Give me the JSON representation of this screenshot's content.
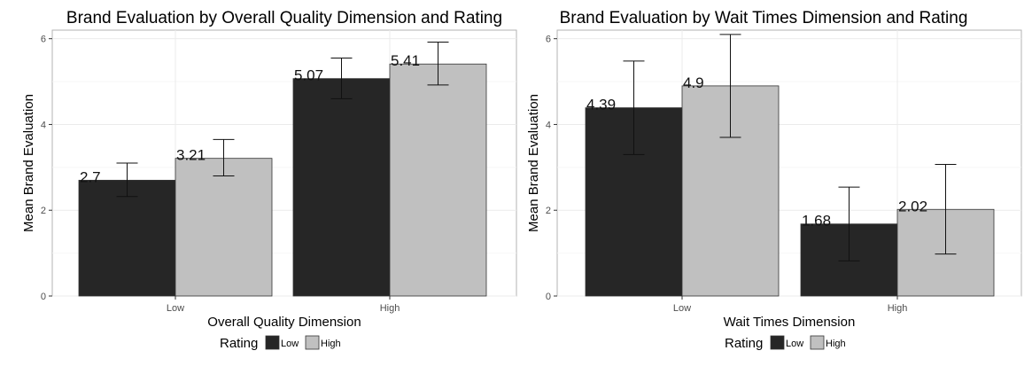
{
  "chart_data": [
    {
      "type": "bar",
      "title": "Brand Evaluation by Overall Quality Dimension and Rating",
      "xlabel": "Overall Quality Dimension",
      "ylabel": "Mean Brand Evaluation",
      "categories": [
        "Low",
        "High"
      ],
      "ylim": [
        0,
        6.2
      ],
      "yticks": [
        0,
        2,
        4,
        6
      ],
      "grid": true,
      "legend": {
        "title": "Rating",
        "position": "bottom"
      },
      "series": [
        {
          "name": "Low",
          "color": "#262626",
          "values": [
            2.7,
            5.07
          ],
          "error_low": [
            2.32,
            4.6
          ],
          "error_high": [
            3.1,
            5.55
          ],
          "labels": [
            "2.7",
            "5.07"
          ]
        },
        {
          "name": "High",
          "color": "#c0c0c0",
          "values": [
            3.21,
            5.41
          ],
          "error_low": [
            2.8,
            4.92
          ],
          "error_high": [
            3.65,
            5.92
          ],
          "labels": [
            "3.21",
            "5.41"
          ]
        }
      ]
    },
    {
      "type": "bar",
      "title": "Brand Evaluation by Wait Times Dimension and Rating",
      "xlabel": "Wait Times Dimension",
      "ylabel": "Mean Brand Evaluation",
      "categories": [
        "Low",
        "High"
      ],
      "ylim": [
        0,
        6.2
      ],
      "yticks": [
        0,
        2,
        4,
        6
      ],
      "grid": true,
      "legend": {
        "title": "Rating",
        "position": "bottom"
      },
      "series": [
        {
          "name": "Low",
          "color": "#262626",
          "values": [
            4.39,
            1.68
          ],
          "error_low": [
            3.3,
            0.82
          ],
          "error_high": [
            5.48,
            2.54
          ],
          "labels": [
            "4.39",
            "1.68"
          ]
        },
        {
          "name": "High",
          "color": "#c0c0c0",
          "values": [
            4.9,
            2.02
          ],
          "error_low": [
            3.7,
            0.98
          ],
          "error_high": [
            6.1,
            3.07
          ],
          "labels": [
            "4.9",
            "2.02"
          ]
        }
      ]
    }
  ]
}
